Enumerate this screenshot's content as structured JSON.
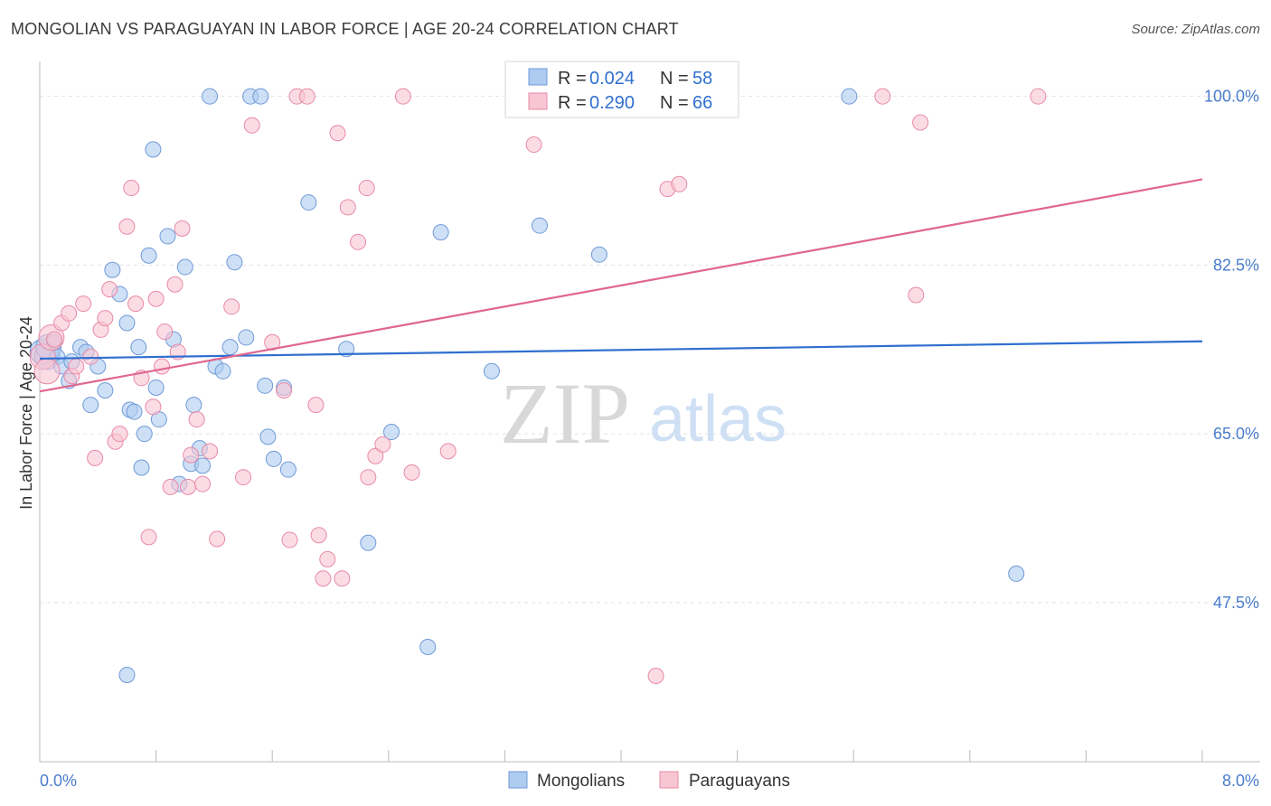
{
  "title": "MONGOLIAN VS PARAGUAYAN IN LABOR FORCE | AGE 20-24 CORRELATION CHART",
  "source": "Source: ZipAtlas.com",
  "watermark": {
    "zip": "ZIP",
    "atlas": "atlas"
  },
  "colors": {
    "mongolian_fill": "#aecbf0",
    "mongolian_stroke": "#6f9ad8",
    "mongolian_line": "#2f6fd0",
    "paraguayan_fill": "#f8c5d3",
    "paraguayan_stroke": "#e88aa7",
    "paraguayan_line": "#e0668f",
    "grid": "#e3e3e3",
    "tick_label": "#4a7ccc"
  },
  "legend": {
    "rows": [
      {
        "r_label": "R = ",
        "r_value": "0.024",
        "n_label": "N = ",
        "n_value": "58"
      },
      {
        "r_label": "R = ",
        "r_value": "0.290",
        "n_label": "N = ",
        "n_value": "66"
      }
    ]
  },
  "bottom_legend": [
    "Mongolians",
    "Paraguayans"
  ],
  "chart_data": {
    "type": "scatter",
    "title": "MONGOLIAN VS PARAGUAYAN IN LABOR FORCE | AGE 20-24 CORRELATION CHART",
    "xlabel": "",
    "ylabel": "In Labor Force | Age 20-24",
    "xlim": [
      0,
      8
    ],
    "ylim": [
      31,
      102.5
    ],
    "x_tick_labels": [
      {
        "value": 0,
        "label": "0.0%"
      },
      {
        "value": 8,
        "label": "8.0%"
      }
    ],
    "y_tick_labels": [
      {
        "value": 100,
        "label": "100.0%"
      },
      {
        "value": 82.5,
        "label": "82.5%"
      },
      {
        "value": 65,
        "label": "65.0%"
      },
      {
        "value": 47.5,
        "label": "47.5%"
      }
    ],
    "series": [
      {
        "name": "Mongolians",
        "R": 0.024,
        "N": 58,
        "trend": {
          "x": [
            0,
            8
          ],
          "y": [
            72.8,
            74.6
          ]
        },
        "points": [
          [
            0.02,
            73.5
          ],
          [
            0.05,
            73.0
          ],
          [
            0.06,
            74.0
          ],
          [
            0.1,
            74.5
          ],
          [
            0.12,
            73.0
          ],
          [
            0.15,
            72.0
          ],
          [
            0.2,
            70.5
          ],
          [
            0.22,
            72.5
          ],
          [
            0.28,
            74.0
          ],
          [
            0.32,
            73.5
          ],
          [
            0.35,
            68.0
          ],
          [
            0.4,
            72.0
          ],
          [
            0.45,
            69.5
          ],
          [
            0.5,
            82.0
          ],
          [
            0.55,
            79.5
          ],
          [
            0.6,
            76.5
          ],
          [
            0.62,
            67.5
          ],
          [
            0.65,
            67.3
          ],
          [
            0.68,
            74.0
          ],
          [
            0.7,
            61.5
          ],
          [
            0.72,
            65.0
          ],
          [
            0.75,
            83.5
          ],
          [
            0.78,
            94.5
          ],
          [
            0.8,
            69.8
          ],
          [
            0.82,
            66.5
          ],
          [
            0.88,
            85.5
          ],
          [
            0.92,
            74.8
          ],
          [
            0.96,
            59.8
          ],
          [
            1.0,
            82.3
          ],
          [
            1.04,
            61.9
          ],
          [
            1.06,
            68.0
          ],
          [
            1.1,
            63.5
          ],
          [
            1.12,
            61.7
          ],
          [
            1.17,
            100
          ],
          [
            1.21,
            72.0
          ],
          [
            1.26,
            71.5
          ],
          [
            1.31,
            74.0
          ],
          [
            1.34,
            82.8
          ],
          [
            1.45,
            100
          ],
          [
            1.52,
            100
          ],
          [
            1.42,
            75.0
          ],
          [
            1.55,
            70.0
          ],
          [
            1.57,
            64.7
          ],
          [
            1.61,
            62.4
          ],
          [
            1.68,
            69.8
          ],
          [
            1.71,
            61.3
          ],
          [
            1.85,
            89.0
          ],
          [
            2.11,
            73.8
          ],
          [
            2.26,
            53.7
          ],
          [
            2.42,
            65.2
          ],
          [
            2.67,
            42.9
          ],
          [
            2.76,
            85.9
          ],
          [
            3.11,
            71.5
          ],
          [
            3.44,
            86.6
          ],
          [
            3.85,
            83.6
          ],
          [
            5.57,
            100
          ],
          [
            6.72,
            50.5
          ],
          [
            0.6,
            40.0
          ]
        ]
      },
      {
        "name": "Paraguayans",
        "R": 0.29,
        "N": 66,
        "trend": {
          "x": [
            0,
            8
          ],
          "y": [
            69.4,
            91.4
          ]
        },
        "points": [
          [
            0.02,
            73.0
          ],
          [
            0.05,
            71.5
          ],
          [
            0.08,
            75.0
          ],
          [
            0.1,
            74.8
          ],
          [
            0.15,
            76.5
          ],
          [
            0.2,
            77.5
          ],
          [
            0.22,
            71.0
          ],
          [
            0.25,
            72.0
          ],
          [
            0.3,
            78.5
          ],
          [
            0.35,
            73.0
          ],
          [
            0.38,
            62.5
          ],
          [
            0.42,
            75.8
          ],
          [
            0.45,
            77.0
          ],
          [
            0.48,
            80.0
          ],
          [
            0.52,
            64.2
          ],
          [
            0.55,
            65.0
          ],
          [
            0.6,
            86.5
          ],
          [
            0.63,
            90.5
          ],
          [
            0.66,
            78.5
          ],
          [
            0.7,
            70.8
          ],
          [
            0.75,
            54.3
          ],
          [
            0.78,
            67.8
          ],
          [
            0.8,
            79.0
          ],
          [
            0.84,
            72.0
          ],
          [
            0.86,
            75.6
          ],
          [
            0.9,
            59.5
          ],
          [
            0.93,
            80.5
          ],
          [
            0.95,
            73.5
          ],
          [
            0.98,
            86.3
          ],
          [
            1.02,
            59.5
          ],
          [
            1.04,
            62.8
          ],
          [
            1.08,
            66.5
          ],
          [
            1.12,
            59.8
          ],
          [
            1.17,
            63.2
          ],
          [
            1.22,
            54.1
          ],
          [
            1.32,
            78.2
          ],
          [
            1.4,
            60.5
          ],
          [
            1.46,
            97.0
          ],
          [
            1.6,
            74.5
          ],
          [
            1.68,
            69.5
          ],
          [
            1.72,
            54.0
          ],
          [
            1.77,
            100
          ],
          [
            1.84,
            100
          ],
          [
            1.9,
            68.0
          ],
          [
            1.92,
            54.5
          ],
          [
            1.95,
            50.0
          ],
          [
            1.98,
            52.0
          ],
          [
            2.05,
            96.2
          ],
          [
            2.08,
            50.0
          ],
          [
            2.12,
            88.5
          ],
          [
            2.19,
            84.9
          ],
          [
            2.25,
            90.5
          ],
          [
            2.26,
            60.5
          ],
          [
            2.31,
            62.7
          ],
          [
            2.36,
            63.9
          ],
          [
            2.5,
            100
          ],
          [
            2.56,
            61.0
          ],
          [
            2.81,
            63.2
          ],
          [
            3.4,
            95.0
          ],
          [
            4.24,
            39.9
          ],
          [
            4.32,
            90.4
          ],
          [
            4.4,
            90.9
          ],
          [
            5.8,
            100
          ],
          [
            6.03,
            79.4
          ],
          [
            6.06,
            97.3
          ],
          [
            6.87,
            100
          ]
        ]
      }
    ]
  }
}
